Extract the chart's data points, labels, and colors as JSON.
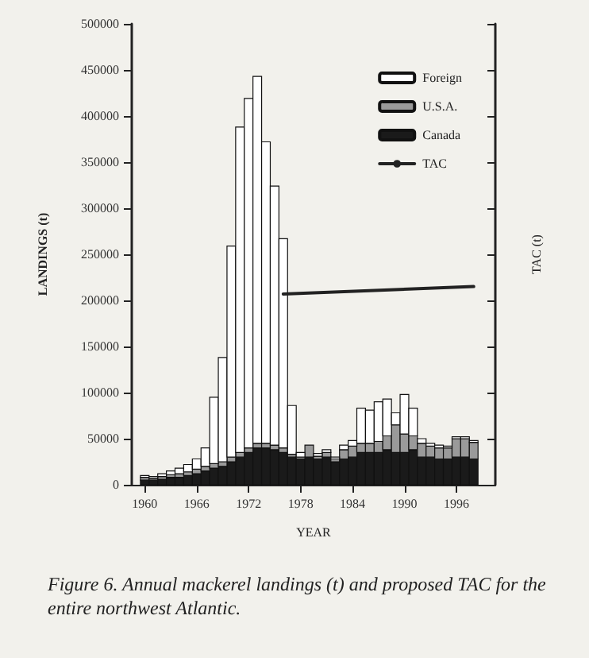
{
  "chart_data": {
    "type": "bar",
    "stacked": true,
    "xlabel": "YEAR",
    "ylabel": "LANDINGS (t)",
    "y2label": "TAC (t)",
    "annotations": [
      "Figure 6. Annual mackerel landings (t) and proposed TAC for the entire northwest Atlantic."
    ],
    "x": [
      1960,
      1961,
      1962,
      1963,
      1964,
      1965,
      1966,
      1967,
      1968,
      1969,
      1970,
      1971,
      1972,
      1973,
      1974,
      1975,
      1976,
      1977,
      1978,
      1979,
      1980,
      1981,
      1982,
      1983,
      1984,
      1985,
      1986,
      1987,
      1988,
      1989,
      1990,
      1991,
      1992,
      1993,
      1994,
      1995,
      1996,
      1997,
      1998
    ],
    "series": [
      {
        "name": "Canada",
        "color": "#1a1a1a",
        "values": [
          5000,
          5000,
          6000,
          8000,
          8000,
          10000,
          12000,
          15000,
          18000,
          20000,
          25000,
          30000,
          35000,
          40000,
          40000,
          38000,
          35000,
          30000,
          28000,
          30000,
          28000,
          30000,
          25000,
          28000,
          30000,
          35000,
          35000,
          35000,
          38000,
          35000,
          35000,
          38000,
          30000,
          30000,
          28000,
          28000,
          30000,
          30000,
          28000
        ]
      },
      {
        "name": "U.S.A.",
        "color": "#9a9a9a",
        "values": [
          3000,
          2000,
          3000,
          3000,
          4000,
          4000,
          5000,
          5000,
          5000,
          5000,
          5000,
          5000,
          5000,
          5000,
          5000,
          5000,
          5000,
          3000,
          2000,
          13000,
          3000,
          5000,
          3000,
          10000,
          12000,
          10000,
          10000,
          12000,
          15000,
          30000,
          20000,
          15000,
          15000,
          12000,
          12000,
          12000,
          20000,
          20000,
          18000
        ]
      },
      {
        "name": "Foreign",
        "color": "#ffffff",
        "values": [
          2000,
          2000,
          3000,
          4000,
          6000,
          8000,
          11000,
          20000,
          72000,
          113000,
          229000,
          353000,
          379000,
          398000,
          327000,
          281000,
          227000,
          53000,
          5000,
          0,
          3000,
          3000,
          2000,
          5000,
          6000,
          38000,
          36000,
          43000,
          40000,
          13000,
          43000,
          30000,
          5000,
          3000,
          3000,
          2000,
          2000,
          2000,
          2000
        ]
      },
      {
        "name": "TAC",
        "type": "line",
        "color": "#222222",
        "x": [
          1976,
          1998
        ],
        "values": [
          207000,
          215000
        ]
      }
    ],
    "xlim": [
      1958.5,
      2000.5
    ],
    "xticks": [
      1960,
      1966,
      1972,
      1978,
      1984,
      1990,
      1996
    ],
    "ylim": [
      0,
      500000
    ],
    "yticks": [
      0,
      50000,
      100000,
      150000,
      200000,
      250000,
      300000,
      350000,
      400000,
      450000,
      500000
    ],
    "legend": "top right",
    "marker": "none",
    "line_style": "solid",
    "grid": false
  }
}
